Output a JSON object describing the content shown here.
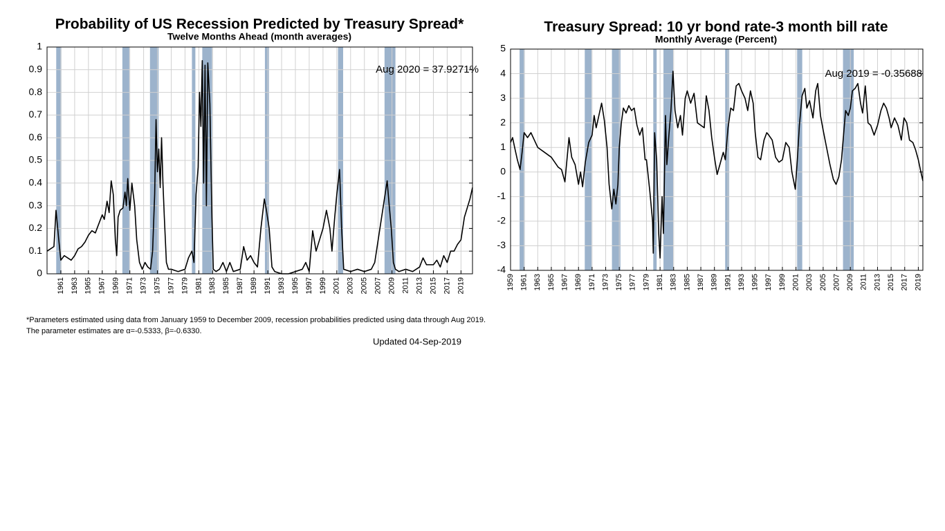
{
  "chart_data": [
    {
      "type": "line",
      "title": "Probability of US Recession Predicted by Treasury Spread*",
      "subtitle": "Twelve Months Ahead (month averages)",
      "annotation": "Aug 2020 = 37.9271%",
      "xlim": [
        1959,
        2020.67
      ],
      "ylim": [
        0,
        1
      ],
      "xticks": [
        1961,
        1963,
        1965,
        1967,
        1969,
        1971,
        1973,
        1975,
        1977,
        1979,
        1981,
        1983,
        1985,
        1987,
        1989,
        1991,
        1993,
        1995,
        1997,
        1999,
        2001,
        2003,
        2005,
        2007,
        2009,
        2011,
        2013,
        2015,
        2017,
        2019
      ],
      "yticks": [
        0,
        0.1,
        0.2,
        0.3,
        0.4,
        0.5,
        0.6,
        0.7,
        0.8,
        0.9,
        1
      ],
      "grid": true,
      "band_color": "#9cb3cc",
      "color": "#000000",
      "recessions": [
        [
          1960.33,
          1961.08
        ],
        [
          1969.92,
          1970.92
        ],
        [
          1973.92,
          1975.17
        ],
        [
          1980.0,
          1980.5
        ],
        [
          1981.5,
          1982.92
        ],
        [
          1990.58,
          1991.17
        ],
        [
          2001.17,
          2001.92
        ],
        [
          2007.92,
          2009.5
        ]
      ],
      "series": [
        {
          "name": "Probability",
          "color": "#000000",
          "x": [
            1959,
            1959.5,
            1960,
            1960.3,
            1960.7,
            1961,
            1961.5,
            1962,
            1962.5,
            1963,
            1963.5,
            1964,
            1964.5,
            1965,
            1965.5,
            1966,
            1966.5,
            1967,
            1967.3,
            1967.7,
            1968,
            1968.3,
            1968.6,
            1968.9,
            1969.1,
            1969.3,
            1969.6,
            1970,
            1970.3,
            1970.5,
            1970.7,
            1971,
            1971.3,
            1971.7,
            1972,
            1972.4,
            1972.8,
            1973.2,
            1973.6,
            1974,
            1974.3,
            1974.6,
            1974.8,
            1975,
            1975.2,
            1975.4,
            1975.6,
            1975.8,
            1976,
            1976.3,
            1976.6,
            1977,
            1978,
            1979,
            1979.5,
            1980,
            1980.3,
            1980.6,
            1980.9,
            1981.1,
            1981.3,
            1981.5,
            1981.7,
            1981.9,
            1982.1,
            1982.3,
            1982.6,
            1982.9,
            1983.1,
            1983.5,
            1984,
            1984.5,
            1985,
            1985.5,
            1986,
            1987,
            1987.5,
            1988,
            1988.5,
            1989,
            1989.5,
            1990,
            1990.5,
            1990.8,
            1991.2,
            1991.6,
            1992,
            1993,
            1994,
            1995,
            1996,
            1996.5,
            1997,
            1997.5,
            1998,
            1998.5,
            1999,
            1999.5,
            2000,
            2000.3,
            2000.7,
            2001,
            2001.4,
            2001.7,
            2002,
            2003,
            2004,
            2005,
            2006,
            2006.5,
            2007,
            2007.5,
            2008,
            2008.3,
            2008.6,
            2008.9,
            2009.2,
            2009.5,
            2010,
            2011,
            2012,
            2013,
            2013.5,
            2014,
            2015,
            2015.5,
            2016,
            2016.5,
            2017,
            2017.5,
            2018,
            2018.5,
            2019,
            2019.5,
            2020,
            2020.3,
            2020.67
          ],
          "values": [
            0.1,
            0.11,
            0.12,
            0.28,
            0.15,
            0.06,
            0.08,
            0.07,
            0.06,
            0.08,
            0.11,
            0.12,
            0.14,
            0.17,
            0.19,
            0.18,
            0.22,
            0.26,
            0.24,
            0.32,
            0.27,
            0.41,
            0.35,
            0.15,
            0.08,
            0.25,
            0.28,
            0.29,
            0.36,
            0.3,
            0.42,
            0.28,
            0.4,
            0.3,
            0.15,
            0.05,
            0.02,
            0.05,
            0.03,
            0.02,
            0.1,
            0.35,
            0.68,
            0.45,
            0.55,
            0.38,
            0.6,
            0.4,
            0.25,
            0.05,
            0.02,
            0.02,
            0.01,
            0.02,
            0.07,
            0.1,
            0.05,
            0.35,
            0.47,
            0.8,
            0.65,
            0.94,
            0.4,
            0.92,
            0.3,
            0.93,
            0.75,
            0.25,
            0.02,
            0.01,
            0.02,
            0.05,
            0.01,
            0.05,
            0.01,
            0.02,
            0.12,
            0.06,
            0.08,
            0.05,
            0.03,
            0.2,
            0.33,
            0.28,
            0.2,
            0.03,
            0.01,
            0.0,
            0.0,
            0.01,
            0.02,
            0.05,
            0.01,
            0.19,
            0.1,
            0.15,
            0.2,
            0.28,
            0.2,
            0.1,
            0.25,
            0.35,
            0.46,
            0.2,
            0.02,
            0.01,
            0.02,
            0.01,
            0.02,
            0.05,
            0.15,
            0.25,
            0.35,
            0.41,
            0.3,
            0.2,
            0.05,
            0.02,
            0.01,
            0.02,
            0.01,
            0.03,
            0.07,
            0.04,
            0.04,
            0.06,
            0.03,
            0.08,
            0.05,
            0.1,
            0.1,
            0.13,
            0.15,
            0.25,
            0.3,
            0.33,
            0.38
          ]
        }
      ]
    },
    {
      "type": "line",
      "title": "Treasury Spread: 10 yr bond rate-3 month bill rate",
      "subtitle": "Monthly Average (Percent)",
      "annotation": "Aug 2019 = -0.35688",
      "xlim": [
        1959,
        2019.67
      ],
      "ylim": [
        -4,
        5
      ],
      "xticks": [
        1959,
        1961,
        1963,
        1965,
        1967,
        1969,
        1971,
        1973,
        1975,
        1977,
        1979,
        1981,
        1983,
        1985,
        1987,
        1989,
        1991,
        1993,
        1995,
        1997,
        1999,
        2001,
        2003,
        2005,
        2007,
        2009,
        2011,
        2013,
        2015,
        2017,
        2019
      ],
      "yticks": [
        -4,
        -3,
        -2,
        -1,
        0,
        1,
        2,
        3,
        4,
        5
      ],
      "grid": true,
      "band_color": "#9cb3cc",
      "color": "#000000",
      "recessions": [
        [
          1960.33,
          1961.08
        ],
        [
          1969.92,
          1970.92
        ],
        [
          1973.92,
          1975.17
        ],
        [
          1980.0,
          1980.5
        ],
        [
          1981.5,
          1982.92
        ],
        [
          1990.58,
          1991.17
        ],
        [
          2001.17,
          2001.92
        ],
        [
          2007.92,
          2009.5
        ]
      ],
      "series": [
        {
          "name": "Spread",
          "color": "#000000",
          "x": [
            1959,
            1959.3,
            1959.6,
            1960,
            1960.4,
            1960.7,
            1961,
            1961.5,
            1962,
            1962.5,
            1963,
            1964,
            1965,
            1965.5,
            1966,
            1966.5,
            1967,
            1967.3,
            1967.6,
            1968,
            1968.5,
            1969,
            1969.3,
            1969.6,
            1970,
            1970.5,
            1971,
            1971.3,
            1971.6,
            1972,
            1972.4,
            1972.8,
            1973.2,
            1973.5,
            1973.9,
            1974.2,
            1974.5,
            1974.8,
            1975,
            1975.3,
            1975.6,
            1976,
            1976.4,
            1976.8,
            1977.2,
            1977.6,
            1978,
            1978.4,
            1978.8,
            1979,
            1979.5,
            1979.9,
            1980,
            1980.2,
            1980.5,
            1980.8,
            1981,
            1981.3,
            1981.5,
            1981.8,
            1982,
            1982.3,
            1982.6,
            1982.9,
            1983.2,
            1983.6,
            1984,
            1984.3,
            1984.7,
            1985,
            1985.5,
            1986,
            1986.5,
            1987,
            1987.5,
            1987.8,
            1988.2,
            1988.6,
            1989,
            1989.4,
            1989.8,
            1990.3,
            1990.6,
            1991,
            1991.4,
            1991.8,
            1992.2,
            1992.6,
            1993,
            1993.5,
            1993.9,
            1994.3,
            1994.7,
            1995,
            1995.4,
            1995.8,
            1996.3,
            1996.7,
            1997,
            1997.5,
            1998,
            1998.5,
            1999,
            1999.5,
            2000,
            2000.4,
            2000.9,
            2001.2,
            2001.5,
            2001.9,
            2002.3,
            2002.6,
            2003,
            2003.5,
            2003.9,
            2004.2,
            2004.6,
            2005,
            2005.5,
            2006,
            2006.5,
            2006.9,
            2007.3,
            2007.7,
            2008,
            2008.3,
            2008.7,
            2009,
            2009.3,
            2009.7,
            2010.1,
            2010.5,
            2010.8,
            2011.2,
            2011.6,
            2012,
            2012.5,
            2013,
            2013.5,
            2013.9,
            2014.3,
            2014.7,
            2015,
            2015.5,
            2016,
            2016.5,
            2016.9,
            2017.3,
            2017.7,
            2018.2,
            2018.6,
            2019,
            2019.3,
            2019.67
          ],
          "values": [
            1.2,
            1.4,
            1.0,
            0.5,
            0.1,
            0.8,
            1.6,
            1.4,
            1.6,
            1.3,
            1.0,
            0.8,
            0.6,
            0.4,
            0.2,
            0.1,
            -0.4,
            0.5,
            1.4,
            0.6,
            0.3,
            -0.5,
            0.0,
            -0.6,
            0.4,
            1.2,
            1.5,
            2.3,
            1.8,
            2.3,
            2.8,
            2.1,
            1.0,
            -0.5,
            -1.5,
            -0.7,
            -1.3,
            -0.5,
            1.0,
            2.0,
            2.6,
            2.4,
            2.7,
            2.5,
            2.6,
            1.9,
            1.5,
            1.8,
            0.5,
            0.5,
            -0.8,
            -2.0,
            -3.3,
            1.6,
            0.5,
            -2.5,
            -3.5,
            -1.0,
            -2.5,
            2.3,
            0.3,
            1.5,
            2.5,
            4.1,
            2.5,
            1.8,
            2.3,
            1.5,
            3.0,
            3.3,
            2.8,
            3.2,
            2.0,
            1.9,
            1.8,
            3.1,
            2.5,
            1.4,
            0.6,
            -0.1,
            0.3,
            0.8,
            0.5,
            1.8,
            2.6,
            2.5,
            3.5,
            3.6,
            3.3,
            3.0,
            2.5,
            3.3,
            2.8,
            1.6,
            0.6,
            0.5,
            1.3,
            1.6,
            1.5,
            1.3,
            0.6,
            0.4,
            0.5,
            1.2,
            1.0,
            0.0,
            -0.7,
            0.5,
            1.9,
            3.1,
            3.4,
            2.6,
            2.9,
            2.2,
            3.3,
            3.6,
            2.3,
            1.7,
            1.0,
            0.3,
            -0.3,
            -0.5,
            -0.2,
            0.5,
            1.5,
            2.5,
            2.3,
            2.6,
            3.3,
            3.4,
            3.6,
            2.8,
            2.4,
            3.5,
            2.0,
            1.9,
            1.5,
            1.9,
            2.5,
            2.8,
            2.6,
            2.2,
            1.8,
            2.2,
            1.9,
            1.3,
            2.2,
            2.0,
            1.3,
            1.2,
            0.9,
            0.5,
            0.1,
            -0.36
          ]
        }
      ]
    }
  ],
  "footnotes": [
    "*Parameters estimated using data from January 1959 to December 2009, recession probabilities predicted using data through Aug 2019.",
    "The parameter estimates are α=-0.5333, β=-0.6330."
  ],
  "updated": "Updated 04-Sep-2019"
}
